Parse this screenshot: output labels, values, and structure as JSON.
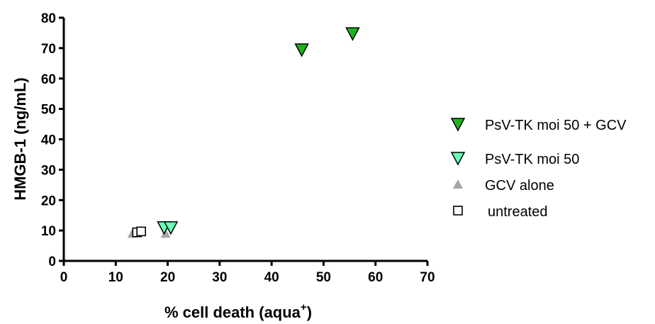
{
  "chart_data": {
    "type": "scatter",
    "xlabel": "% cell death (aqua",
    "xlabel_sup": "+",
    "xlabel_close": ")",
    "ylabel": "HMGB-1 (ng/mL)",
    "xlim": [
      0,
      70
    ],
    "ylim": [
      0,
      80
    ],
    "xticks": [
      "0",
      "10",
      "20",
      "30",
      "40",
      "50",
      "60",
      "70"
    ],
    "yticks": [
      "0",
      "10",
      "20",
      "30",
      "40",
      "50",
      "60",
      "70",
      "80"
    ],
    "grid": false,
    "legend_position": "right",
    "series": [
      {
        "name": "PsV-TK moi 50 + GCV",
        "marker": "triangle-down",
        "color": "#1db31d",
        "points": [
          [
            45.8,
            69.5
          ],
          [
            55.6,
            74.8
          ]
        ]
      },
      {
        "name": "PsV-TK moi 50",
        "marker": "triangle-down",
        "color": "#66ffb3",
        "points": [
          [
            19.3,
            11.0
          ],
          [
            20.6,
            11.0
          ]
        ]
      },
      {
        "name": "GCV alone",
        "marker": "triangle-up",
        "color": "#a6a6a6",
        "points": [
          [
            13.2,
            9.0
          ],
          [
            19.6,
            9.0
          ]
        ]
      },
      {
        "name": "untreated",
        "marker": "square-open",
        "color": "#ffffff",
        "points": [
          [
            14.1,
            9.4
          ],
          [
            14.9,
            9.7
          ]
        ]
      }
    ]
  }
}
